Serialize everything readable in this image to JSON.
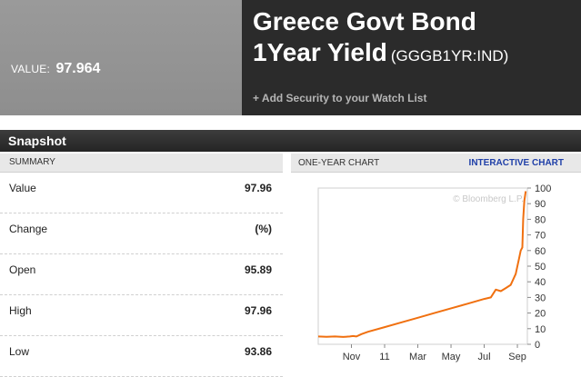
{
  "header": {
    "value_label": "VALUE:",
    "value": "97.964",
    "title_line1": "Greece Govt Bond",
    "title_line2": "1Year Yield",
    "ticker": "(GGGB1YR:IND)",
    "watch_link": "+ Add Security to your Watch List"
  },
  "snapshot": {
    "title": "Snapshot",
    "summary_header": "SUMMARY",
    "rows": [
      {
        "label": "Value",
        "value": "97.96"
      },
      {
        "label": "Change",
        "value": "(%)"
      },
      {
        "label": "Open",
        "value": "95.89"
      },
      {
        "label": "High",
        "value": "97.96"
      },
      {
        "label": "Low",
        "value": "93.86"
      }
    ]
  },
  "chart_panel": {
    "title": "ONE-YEAR CHART",
    "link": "INTERACTIVE CHART",
    "watermark": "© Bloomberg L.P."
  },
  "colors": {
    "line": "#f07010",
    "header_dark": "#2b2b2b",
    "link": "#1f3fa8"
  },
  "chart_data": {
    "type": "line",
    "title": "",
    "xlabel": "",
    "ylabel": "",
    "ylim": [
      0,
      100
    ],
    "y_ticks": [
      0,
      10,
      20,
      30,
      40,
      50,
      60,
      70,
      80,
      90,
      100
    ],
    "x_tick_labels": [
      "Nov",
      "11",
      "Mar",
      "May",
      "Jul",
      "Sep"
    ],
    "x_tick_months": [
      2,
      4,
      6,
      8,
      10,
      12
    ],
    "grid": false,
    "series": [
      {
        "x_months": [
          0,
          0.5,
          1.0,
          1.5,
          1.9,
          2.1,
          2.3,
          2.6,
          3,
          4,
          5,
          6,
          7,
          8,
          9,
          10,
          10.4,
          10.7,
          11.0,
          11.3,
          11.6,
          11.9,
          12.1,
          12.2,
          12.3,
          12.35,
          12.42,
          12.5
        ],
        "values": [
          5,
          4.8,
          5,
          4.7,
          5,
          5.3,
          5,
          6.5,
          8,
          11,
          14,
          17,
          20,
          23,
          26,
          29,
          30,
          35,
          34,
          36,
          38,
          45,
          55,
          60,
          62,
          80,
          92,
          97.96
        ]
      }
    ]
  }
}
